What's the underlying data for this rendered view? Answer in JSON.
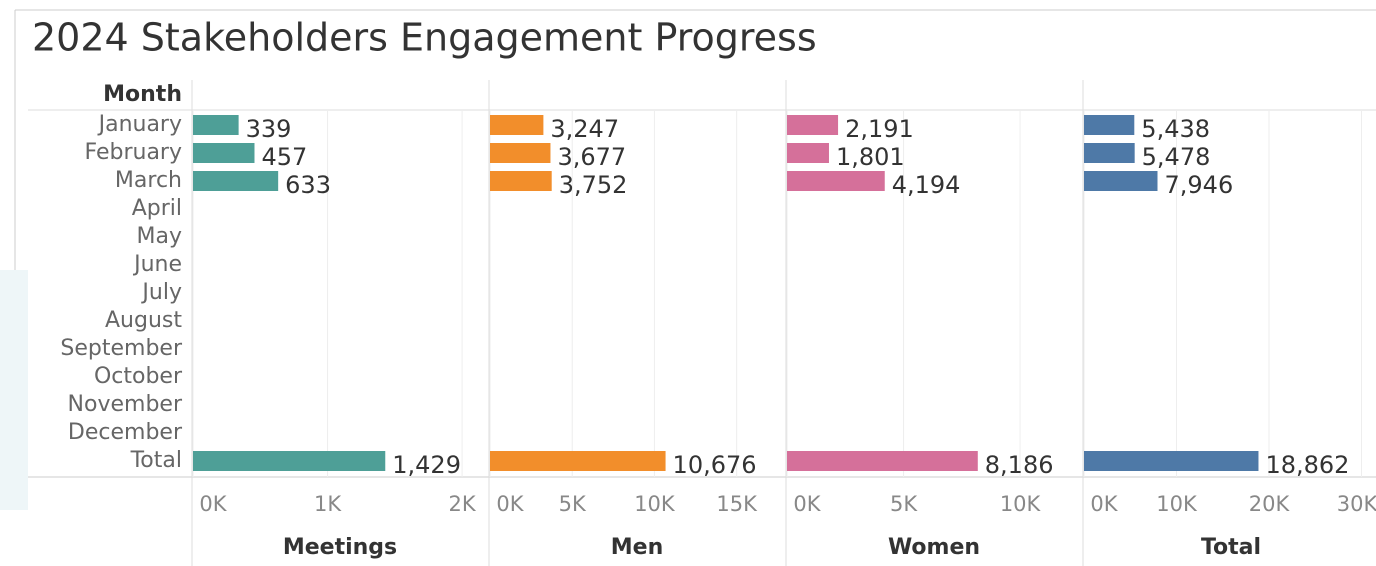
{
  "title": "2024 Stakeholders Engagement Progress",
  "row_header": "Month",
  "categories": [
    "January",
    "February",
    "March",
    "April",
    "May",
    "June",
    "July",
    "August",
    "September",
    "October",
    "November",
    "December",
    "Total"
  ],
  "chart_data": [
    {
      "type": "bar",
      "x_label": "Meetings",
      "color": "#4e9f97",
      "values": [
        339,
        457,
        633,
        null,
        null,
        null,
        null,
        null,
        null,
        null,
        null,
        null,
        1429
      ],
      "value_labels": [
        "339",
        "457",
        "633",
        null,
        null,
        null,
        null,
        null,
        null,
        null,
        null,
        null,
        "1,429"
      ],
      "xlim": [
        0,
        2200
      ],
      "xticks": [
        {
          "value": 0,
          "label": "0K"
        },
        {
          "value": 1000,
          "label": "1K"
        },
        {
          "value": 2000,
          "label": "2K"
        }
      ],
      "grid": true
    },
    {
      "type": "bar",
      "x_label": "Men",
      "color": "#f28e2b",
      "values": [
        3247,
        3677,
        3752,
        null,
        null,
        null,
        null,
        null,
        null,
        null,
        null,
        null,
        10676
      ],
      "value_labels": [
        "3,247",
        "3,677",
        "3,752",
        null,
        null,
        null,
        null,
        null,
        null,
        null,
        null,
        null,
        "10,676"
      ],
      "xlim": [
        0,
        18000
      ],
      "xticks": [
        {
          "value": 0,
          "label": "0K"
        },
        {
          "value": 5000,
          "label": "5K"
        },
        {
          "value": 10000,
          "label": "10K"
        },
        {
          "value": 15000,
          "label": "15K"
        }
      ],
      "grid": true
    },
    {
      "type": "bar",
      "x_label": "Women",
      "color": "#d5709a",
      "values": [
        2191,
        1801,
        4194,
        null,
        null,
        null,
        null,
        null,
        null,
        null,
        null,
        null,
        8186
      ],
      "value_labels": [
        "2,191",
        "1,801",
        "4,194",
        null,
        null,
        null,
        null,
        null,
        null,
        null,
        null,
        null,
        "8,186"
      ],
      "xlim": [
        0,
        12700
      ],
      "xticks": [
        {
          "value": 0,
          "label": "0K"
        },
        {
          "value": 5000,
          "label": "5K"
        },
        {
          "value": 10000,
          "label": "10K"
        }
      ],
      "grid": true
    },
    {
      "type": "bar",
      "x_label": "Total",
      "color": "#4e79a7",
      "values": [
        5438,
        5478,
        7946,
        null,
        null,
        null,
        null,
        null,
        null,
        null,
        null,
        null,
        18862
      ],
      "value_labels": [
        "5,438",
        "5,478",
        "7,946",
        null,
        null,
        null,
        null,
        null,
        null,
        null,
        null,
        null,
        "18,862"
      ],
      "xlim": [
        0,
        32000
      ],
      "xticks": [
        {
          "value": 0,
          "label": "0K"
        },
        {
          "value": 10000,
          "label": "10K"
        },
        {
          "value": 20000,
          "label": "20K"
        },
        {
          "value": 30000,
          "label": "30K"
        }
      ],
      "grid": true
    }
  ]
}
